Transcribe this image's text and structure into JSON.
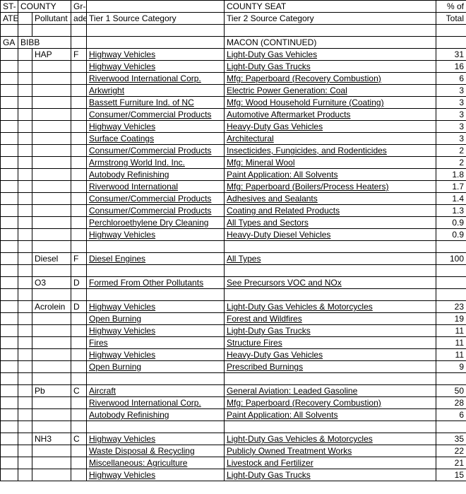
{
  "headers": {
    "state": "ST-",
    "state2": "ATE",
    "county": "COUNTY",
    "pollutant": "Pollutant",
    "gr": "Gr-",
    "ade": "ade",
    "tier1": "Tier 1 Source Category",
    "countyseat": "COUNTY SEAT",
    "tier2": "Tier 2 Source Category",
    "pctof": "% of",
    "total": "Total"
  },
  "state": "GA",
  "county": "BIBB",
  "countyseat_cont": "MACON (CONTINUED)",
  "groups": [
    {
      "pollutant": "HAP",
      "grade": "F",
      "rows": [
        {
          "t1": "Highway Vehicles",
          "t2": "Light-Duty Gas Vehicles",
          "pct": "31"
        },
        {
          "t1": "Highway Vehicles",
          "t2": "Light-Duty Gas Trucks",
          "pct": "16"
        },
        {
          "t1": "Riverwood International Corp.",
          "t2": "Mfg: Paperboard (Recovery Combustion)",
          "pct": "6"
        },
        {
          "t1": "Arkwright",
          "t2": "Electric Power Generation: Coal",
          "pct": "3"
        },
        {
          "t1": "Bassett Furniture Ind. of NC",
          "t2": "Mfg: Wood Household Furniture (Coating)",
          "pct": "3"
        },
        {
          "t1": "Consumer/Commercial Products",
          "t2": "Automotive Aftermarket Products",
          "pct": "3"
        },
        {
          "t1": "Highway Vehicles",
          "t2": "Heavy-Duty Gas Vehicles",
          "pct": "3"
        },
        {
          "t1": "Surface Coatings",
          "t2": "Architectural",
          "pct": "3"
        },
        {
          "t1": "Consumer/Commercial Products",
          "t2": "Insecticides, Fungicides, and Rodenticides",
          "pct": "2"
        },
        {
          "t1": "Armstrong World Ind. Inc.",
          "t2": "Mfg: Mineral Wool",
          "pct": "2"
        },
        {
          "t1": "Autobody Refinishing",
          "t2": "Paint Application: All Solvents",
          "pct": "1.8"
        },
        {
          "t1": "Riverwood International",
          "t2": "Mfg: Paperboard (Boilers/Process Heaters)",
          "pct": "1.7"
        },
        {
          "t1": "Consumer/Commercial Products",
          "t2": "Adhesives and Sealants",
          "pct": "1.4"
        },
        {
          "t1": "Consumer/Commercial Products",
          "t2": "Coating and Related Products",
          "pct": "1.3"
        },
        {
          "t1": "Perchloroethylene Dry Cleaning",
          "t2": "All Types and Sectors",
          "pct": "0.9"
        },
        {
          "t1": "Highway Vehicles",
          "t2": "Heavy-Duty Diesel Vehicles",
          "pct": "0.9"
        }
      ]
    },
    {
      "pollutant": "Diesel",
      "grade": "F",
      "rows": [
        {
          "t1": "Diesel Engines",
          "t2": "All Types",
          "pct": "100"
        }
      ]
    },
    {
      "pollutant": "O3",
      "grade": "D",
      "rows": [
        {
          "t1": "Formed From Other Pollutants",
          "t2": "See Precursors VOC and NOx",
          "pct": ""
        }
      ]
    },
    {
      "pollutant": "Acrolein",
      "grade": "D",
      "rows": [
        {
          "t1": "Highway Vehicles",
          "t2": "Light-Duty Gas Vehicles & Motorcycles",
          "pct": "23"
        },
        {
          "t1": "Open Burning",
          "t2": "Forest and Wildfires",
          "pct": "19"
        },
        {
          "t1": "Highway Vehicles",
          "t2": "Light-Duty Gas Trucks",
          "pct": "11"
        },
        {
          "t1": "Fires",
          "t2": "Structure Fires",
          "pct": "11"
        },
        {
          "t1": "Highway Vehicles",
          "t2": "Heavy-Duty Gas Vehicles",
          "pct": "11"
        },
        {
          "t1": "Open Burning",
          "t2": "Prescribed Burnings",
          "pct": "9"
        }
      ]
    },
    {
      "pollutant": "Pb",
      "grade": "C",
      "rows": [
        {
          "t1": "Aircraft",
          "t2": "General Aviation: Leaded Gasoline",
          "pct": "50"
        },
        {
          "t1": "Riverwood International Corp.",
          "t2": "Mfg: Paperboard (Recovery Combustion)",
          "pct": "28"
        },
        {
          "t1": "Autobody Refinishing",
          "t2": "Paint Application: All Solvents",
          "pct": "6"
        }
      ]
    },
    {
      "pollutant": "NH3",
      "grade": "C",
      "rows": [
        {
          "t1": "Highway Vehicles",
          "t2": "Light-Duty Gas Vehicles & Motorcycles",
          "pct": "35"
        },
        {
          "t1": "Waste Disposal & Recycling",
          "t2": "Publicly Owned Treatment Works",
          "pct": "22"
        },
        {
          "t1": "Miscellaneous: Agriculture",
          "t2": "Livestock and Fertilizer",
          "pct": "21"
        },
        {
          "t1": "Highway Vehicles",
          "t2": "Light-Duty Gas Trucks",
          "pct": "15"
        }
      ]
    }
  ]
}
